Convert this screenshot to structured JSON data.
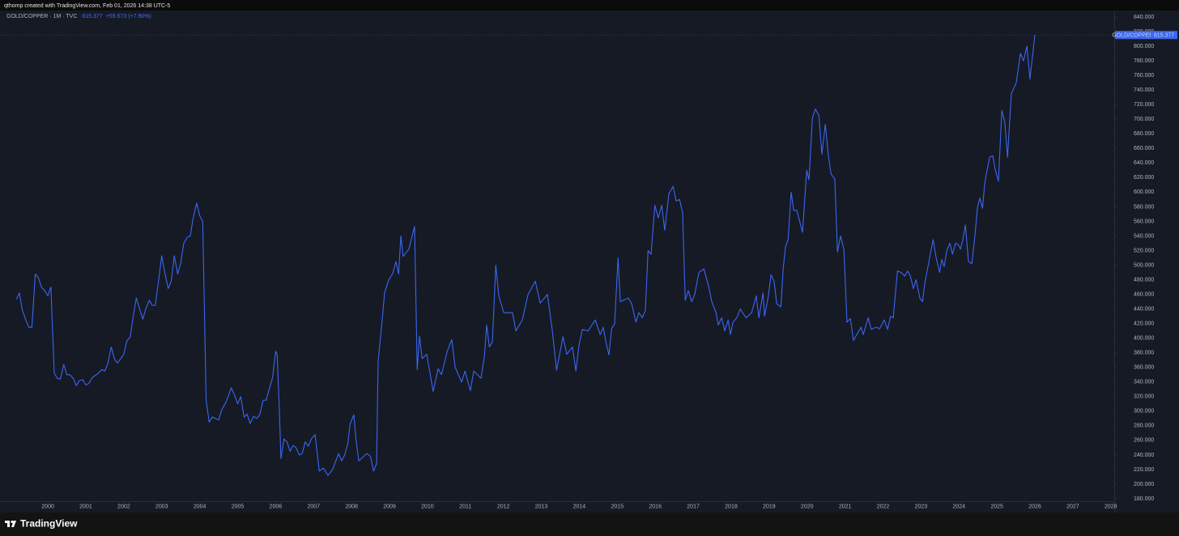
{
  "header": {
    "attribution": "qthomp created with TradingView.com, Feb 01, 2026 14:38 UTC-5"
  },
  "footer": {
    "brand": "TradingView"
  },
  "chart_data": {
    "type": "line",
    "legend_title": "GOLD/COPPER · 1M · TVC",
    "legend_change": "+59.673 (+7.90%)",
    "grid": false,
    "xlim": [
      1998.74,
      2028.09
    ],
    "ylim": [
      176.7,
      848.9
    ],
    "xticks": [
      2000,
      2001,
      2002,
      2003,
      2004,
      2005,
      2006,
      2007,
      2008,
      2009,
      2010,
      2011,
      2012,
      2013,
      2014,
      2015,
      2016,
      2017,
      2018,
      2019,
      2020,
      2021,
      2022,
      2023,
      2024,
      2025,
      2026,
      2027,
      2028
    ],
    "yticks": [
      {
        "value": 180,
        "label": "180.000"
      },
      {
        "value": 200,
        "label": "200.000"
      },
      {
        "value": 220,
        "label": "220.000"
      },
      {
        "value": 240,
        "label": "240.000"
      },
      {
        "value": 260,
        "label": "260.000"
      },
      {
        "value": 280,
        "label": "280.000"
      },
      {
        "value": 300,
        "label": "300.000"
      },
      {
        "value": 320,
        "label": "320.000"
      },
      {
        "value": 340,
        "label": "340.000"
      },
      {
        "value": 360,
        "label": "360.000"
      },
      {
        "value": 380,
        "label": "380.000"
      },
      {
        "value": 400,
        "label": "400.000"
      },
      {
        "value": 420,
        "label": "420.000"
      },
      {
        "value": 440,
        "label": "440.000"
      },
      {
        "value": 460,
        "label": "460.000"
      },
      {
        "value": 480,
        "label": "480.000"
      },
      {
        "value": 500,
        "label": "500.000"
      },
      {
        "value": 520,
        "label": "520.000"
      },
      {
        "value": 540,
        "label": "540.000"
      },
      {
        "value": 560,
        "label": "560.000"
      },
      {
        "value": 580,
        "label": "580.000"
      },
      {
        "value": 600,
        "label": "600.000"
      },
      {
        "value": 620,
        "label": "620.000"
      },
      {
        "value": 640,
        "label": "640.000"
      },
      {
        "value": 660,
        "label": "660.000"
      },
      {
        "value": 680,
        "label": "680.000"
      },
      {
        "value": 700,
        "label": "700.000"
      },
      {
        "value": 720,
        "label": "720.000"
      },
      {
        "value": 740,
        "label": "740.000"
      },
      {
        "value": 760,
        "label": "760.000"
      },
      {
        "value": 780,
        "label": "780.000"
      },
      {
        "value": 800,
        "label": "800.000"
      },
      {
        "value": 820,
        "label": "820.000"
      },
      {
        "value": 840,
        "label": "840.000"
      }
    ],
    "x": [
      1999.17,
      1999.25,
      1999.33,
      1999.42,
      1999.5,
      1999.58,
      1999.67,
      1999.75,
      1999.83,
      1999.92,
      2000.0,
      2000.08,
      2000.17,
      2000.25,
      2000.33,
      2000.42,
      2000.5,
      2000.58,
      2000.67,
      2000.75,
      2000.83,
      2000.92,
      2001.0,
      2001.08,
      2001.17,
      2001.33,
      2001.42,
      2001.5,
      2001.58,
      2001.67,
      2001.75,
      2001.83,
      2001.92,
      2002.0,
      2002.08,
      2002.17,
      2002.25,
      2002.33,
      2002.42,
      2002.5,
      2002.58,
      2002.67,
      2002.75,
      2002.83,
      2002.92,
      2003.0,
      2003.08,
      2003.17,
      2003.25,
      2003.33,
      2003.42,
      2003.5,
      2003.58,
      2003.67,
      2003.75,
      2003.83,
      2003.92,
      2004.0,
      2004.08,
      2004.17,
      2004.25,
      2004.33,
      2004.42,
      2004.5,
      2004.58,
      2004.67,
      2004.75,
      2004.83,
      2004.92,
      2005.0,
      2005.08,
      2005.17,
      2005.25,
      2005.33,
      2005.42,
      2005.5,
      2005.58,
      2005.67,
      2005.75,
      2005.83,
      2005.92,
      2006.0,
      2006.04,
      2006.1,
      2006.14,
      2006.22,
      2006.3,
      2006.38,
      2006.46,
      2006.54,
      2006.62,
      2006.7,
      2006.78,
      2006.86,
      2006.94,
      2007.04,
      2007.15,
      2007.26,
      2007.38,
      2007.5,
      2007.66,
      2007.74,
      2007.82,
      2007.9,
      2007.96,
      2008.06,
      2008.12,
      2008.19,
      2008.3,
      2008.4,
      2008.5,
      2008.58,
      2008.66,
      2008.7,
      2008.79,
      2008.87,
      2008.98,
      2009.08,
      2009.17,
      2009.24,
      2009.3,
      2009.36,
      2009.51,
      2009.66,
      2009.73,
      2009.79,
      2009.86,
      2009.98,
      2010.15,
      2010.28,
      2010.37,
      2010.52,
      2010.64,
      2010.73,
      2010.9,
      2010.99,
      2011.13,
      2011.22,
      2011.41,
      2011.5,
      2011.56,
      2011.63,
      2011.71,
      2011.8,
      2011.88,
      2012.01,
      2012.24,
      2012.33,
      2012.5,
      2012.65,
      2012.84,
      2012.97,
      2013.16,
      2013.29,
      2013.4,
      2013.57,
      2013.67,
      2013.82,
      2013.91,
      2013.99,
      2014.08,
      2014.23,
      2014.42,
      2014.55,
      2014.63,
      2014.7,
      2014.78,
      2014.85,
      2014.93,
      2015.02,
      2015.08,
      2015.29,
      2015.38,
      2015.49,
      2015.57,
      2015.66,
      2015.74,
      2015.81,
      2015.89,
      2015.99,
      2016.08,
      2016.17,
      2016.25,
      2016.36,
      2016.47,
      2016.55,
      2016.64,
      2016.72,
      2016.79,
      2016.87,
      2016.96,
      2017.04,
      2017.15,
      2017.28,
      2017.41,
      2017.49,
      2017.6,
      2017.66,
      2017.75,
      2017.83,
      2017.92,
      2017.98,
      2018.05,
      2018.15,
      2018.24,
      2018.39,
      2018.54,
      2018.66,
      2018.73,
      2018.84,
      2018.88,
      2018.98,
      2019.05,
      2019.13,
      2019.2,
      2019.31,
      2019.37,
      2019.43,
      2019.5,
      2019.58,
      2019.65,
      2019.73,
      2019.88,
      2019.99,
      2020.05,
      2020.14,
      2020.22,
      2020.31,
      2020.39,
      2020.48,
      2020.56,
      2020.63,
      2020.73,
      2020.8,
      2020.88,
      2020.97,
      2021.05,
      2021.14,
      2021.22,
      2021.31,
      2021.42,
      2021.48,
      2021.61,
      2021.69,
      2021.82,
      2021.91,
      2022.03,
      2022.12,
      2022.2,
      2022.27,
      2022.38,
      2022.48,
      2022.57,
      2022.65,
      2022.72,
      2022.8,
      2022.87,
      2022.97,
      2023.04,
      2023.1,
      2023.19,
      2023.32,
      2023.4,
      2023.49,
      2023.55,
      2023.61,
      2023.68,
      2023.76,
      2023.83,
      2023.91,
      2023.98,
      2024.04,
      2024.1,
      2024.17,
      2024.25,
      2024.34,
      2024.42,
      2024.49,
      2024.55,
      2024.62,
      2024.68,
      2024.74,
      2024.81,
      2024.89,
      2024.96,
      2025.04,
      2025.13,
      2025.21,
      2025.28,
      2025.38,
      2025.51,
      2025.62,
      2025.7,
      2025.79,
      2025.87,
      2026.0
    ],
    "series": [
      {
        "name": "GOLD/COPPER",
        "color": "#3a66f2",
        "values": [
          453,
          462,
          438,
          425,
          415,
          415,
          488,
          483,
          470,
          465,
          458,
          470,
          352,
          345,
          344,
          364,
          350,
          350,
          345,
          335,
          342,
          343,
          336,
          338,
          346,
          352,
          357,
          355,
          365,
          388,
          372,
          366,
          372,
          378,
          396,
          402,
          430,
          455,
          440,
          426,
          440,
          452,
          445,
          445,
          480,
          513,
          490,
          468,
          478,
          513,
          488,
          503,
          530,
          538,
          540,
          565,
          585,
          568,
          560,
          315,
          285,
          292,
          290,
          288,
          302,
          310,
          320,
          332,
          322,
          310,
          320,
          292,
          296,
          283,
          293,
          290,
          295,
          315,
          315,
          330,
          346,
          382,
          378,
          300,
          235,
          262,
          258,
          245,
          253,
          250,
          240,
          242,
          258,
          252,
          262,
          268,
          218,
          222,
          212,
          220,
          242,
          232,
          240,
          255,
          282,
          295,
          260,
          232,
          237,
          242,
          238,
          218,
          228,
          368,
          415,
          462,
          480,
          488,
          505,
          488,
          540,
          512,
          522,
          553,
          357,
          403,
          372,
          378,
          327,
          358,
          350,
          382,
          398,
          360,
          340,
          355,
          328,
          355,
          345,
          375,
          418,
          388,
          395,
          500,
          458,
          435,
          435,
          410,
          425,
          460,
          478,
          448,
          460,
          410,
          356,
          402,
          378,
          388,
          355,
          390,
          412,
          410,
          425,
          405,
          415,
          395,
          377,
          413,
          420,
          510,
          450,
          455,
          447,
          422,
          435,
          428,
          438,
          520,
          515,
          582,
          565,
          582,
          548,
          598,
          608,
          588,
          590,
          572,
          452,
          465,
          450,
          460,
          490,
          495,
          470,
          450,
          435,
          418,
          428,
          410,
          425,
          405,
          422,
          428,
          440,
          428,
          435,
          458,
          428,
          462,
          430,
          458,
          487,
          478,
          447,
          443,
          495,
          525,
          535,
          600,
          575,
          575,
          545,
          630,
          617,
          702,
          714,
          705,
          652,
          693,
          650,
          625,
          618,
          518,
          540,
          522,
          422,
          427,
          397,
          405,
          415,
          405,
          428,
          412,
          415,
          413,
          425,
          412,
          430,
          428,
          492,
          490,
          485,
          492,
          485,
          468,
          480,
          455,
          450,
          475,
          500,
          535,
          510,
          490,
          508,
          498,
          520,
          530,
          515,
          530,
          528,
          522,
          535,
          555,
          505,
          502,
          540,
          580,
          592,
          578,
          612,
          630,
          648,
          650,
          630,
          615,
          712,
          695,
          648,
          735,
          750,
          790,
          780,
          800,
          755,
          815.377
        ]
      }
    ]
  }
}
